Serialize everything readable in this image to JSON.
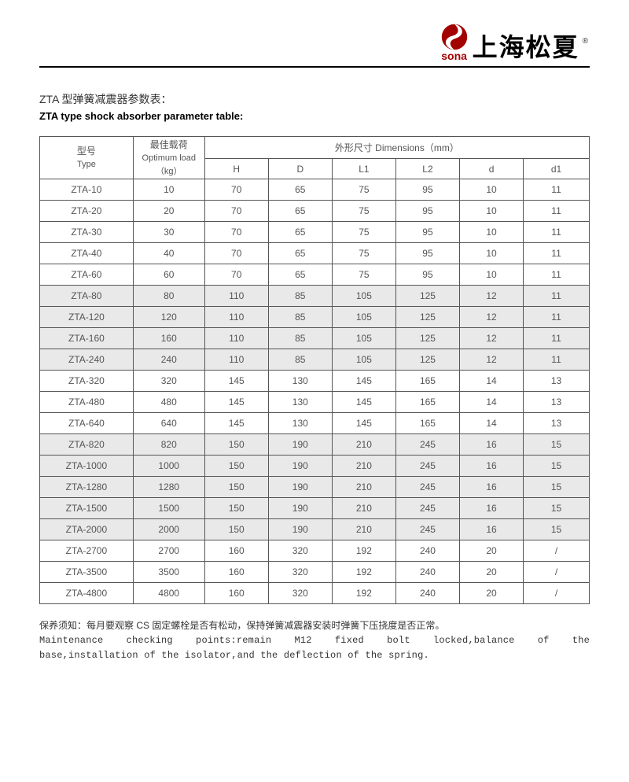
{
  "header": {
    "logo_text": "sona",
    "brand_cn": "上海松夏",
    "registered": "®",
    "logo_color": "#a30000"
  },
  "titles": {
    "cn": "ZTA 型弹簧减震器参数表：",
    "en": "ZTA type shock absorber parameter table:"
  },
  "table": {
    "columns": {
      "type_cn": "型号",
      "type_en": "Type",
      "load_cn": "最佳载荷",
      "load_en": "Optimum load（kg）",
      "dims_label": "外形尺寸 Dimensions（mm）",
      "dim_headers": [
        "H",
        "D",
        "L1",
        "L2",
        "d",
        "d1"
      ]
    },
    "col_widths_pct": [
      17,
      13,
      11.6,
      11.6,
      11.6,
      11.6,
      11.6,
      12
    ],
    "band_color": "#e9e9e9",
    "rows": [
      {
        "type": "ZTA-10",
        "load": "10",
        "H": "70",
        "D": "65",
        "L1": "75",
        "L2": "95",
        "d": "10",
        "d1": "11",
        "band": false
      },
      {
        "type": "ZTA-20",
        "load": "20",
        "H": "70",
        "D": "65",
        "L1": "75",
        "L2": "95",
        "d": "10",
        "d1": "11",
        "band": false
      },
      {
        "type": "ZTA-30",
        "load": "30",
        "H": "70",
        "D": "65",
        "L1": "75",
        "L2": "95",
        "d": "10",
        "d1": "11",
        "band": false
      },
      {
        "type": "ZTA-40",
        "load": "40",
        "H": "70",
        "D": "65",
        "L1": "75",
        "L2": "95",
        "d": "10",
        "d1": "11",
        "band": false
      },
      {
        "type": "ZTA-60",
        "load": "60",
        "H": "70",
        "D": "65",
        "L1": "75",
        "L2": "95",
        "d": "10",
        "d1": "11",
        "band": false
      },
      {
        "type": "ZTA-80",
        "load": "80",
        "H": "110",
        "D": "85",
        "L1": "105",
        "L2": "125",
        "d": "12",
        "d1": "11",
        "band": true
      },
      {
        "type": "ZTA-120",
        "load": "120",
        "H": "110",
        "D": "85",
        "L1": "105",
        "L2": "125",
        "d": "12",
        "d1": "11",
        "band": true
      },
      {
        "type": "ZTA-160",
        "load": "160",
        "H": "110",
        "D": "85",
        "L1": "105",
        "L2": "125",
        "d": "12",
        "d1": "11",
        "band": true
      },
      {
        "type": "ZTA-240",
        "load": "240",
        "H": "110",
        "D": "85",
        "L1": "105",
        "L2": "125",
        "d": "12",
        "d1": "11",
        "band": true
      },
      {
        "type": "ZTA-320",
        "load": "320",
        "H": "145",
        "D": "130",
        "L1": "145",
        "L2": "165",
        "d": "14",
        "d1": "13",
        "band": false
      },
      {
        "type": "ZTA-480",
        "load": "480",
        "H": "145",
        "D": "130",
        "L1": "145",
        "L2": "165",
        "d": "14",
        "d1": "13",
        "band": false
      },
      {
        "type": "ZTA-640",
        "load": "640",
        "H": "145",
        "D": "130",
        "L1": "145",
        "L2": "165",
        "d": "14",
        "d1": "13",
        "band": false
      },
      {
        "type": "ZTA-820",
        "load": "820",
        "H": "150",
        "D": "190",
        "L1": "210",
        "L2": "245",
        "d": "16",
        "d1": "15",
        "band": true
      },
      {
        "type": "ZTA-1000",
        "load": "1000",
        "H": "150",
        "D": "190",
        "L1": "210",
        "L2": "245",
        "d": "16",
        "d1": "15",
        "band": true
      },
      {
        "type": "ZTA-1280",
        "load": "1280",
        "H": "150",
        "D": "190",
        "L1": "210",
        "L2": "245",
        "d": "16",
        "d1": "15",
        "band": true
      },
      {
        "type": "ZTA-1500",
        "load": "1500",
        "H": "150",
        "D": "190",
        "L1": "210",
        "L2": "245",
        "d": "16",
        "d1": "15",
        "band": true
      },
      {
        "type": "ZTA-2000",
        "load": "2000",
        "H": "150",
        "D": "190",
        "L1": "210",
        "L2": "245",
        "d": "16",
        "d1": "15",
        "band": true
      },
      {
        "type": "ZTA-2700",
        "load": "2700",
        "H": "160",
        "D": "320",
        "L1": "192",
        "L2": "240",
        "d": "20",
        "d1": "/",
        "band": false
      },
      {
        "type": "ZTA-3500",
        "load": "3500",
        "H": "160",
        "D": "320",
        "L1": "192",
        "L2": "240",
        "d": "20",
        "d1": "/",
        "band": false
      },
      {
        "type": "ZTA-4800",
        "load": "4800",
        "H": "160",
        "D": "320",
        "L1": "192",
        "L2": "240",
        "d": "20",
        "d1": "/",
        "band": false
      }
    ]
  },
  "footer": {
    "cn": "保养须知：每月要观察 CS 固定螺栓是否有松动，保持弹簧减震器安装时弹簧下压挠度是否正常。",
    "en_line1": "Maintenance   checking   points:remain   M12   fixed   bolt   locked,balance   of   the",
    "en_line2": "base,installation of the isolator,and the deflection of the spring."
  }
}
